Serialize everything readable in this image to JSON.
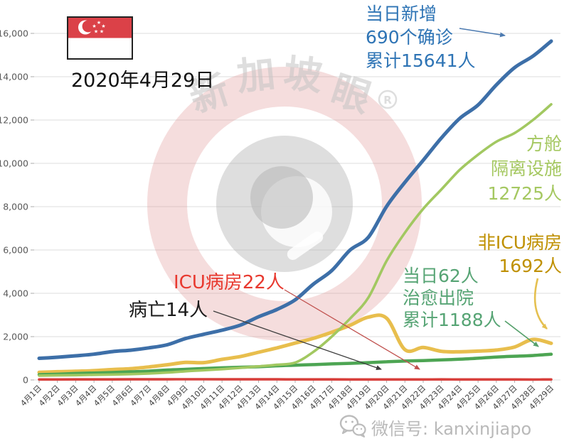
{
  "header": {
    "date": "2020年4月29日",
    "flag": "singapore-flag"
  },
  "watermark": {
    "chars": [
      "新",
      "加",
      "坡",
      "眼"
    ],
    "registered": "R"
  },
  "footer": {
    "wechat_label": "微信号: kanxinjiapo"
  },
  "annotations": {
    "confirmed": {
      "lines": [
        "当日新增",
        "690个确诊",
        "累计15641人"
      ],
      "color": "#2E74B5"
    },
    "facilities": {
      "lines": [
        "方舱",
        "隔离设施",
        "12725人"
      ],
      "color": "#A5C861"
    },
    "non_icu": {
      "lines": [
        "非ICU病房",
        "1692人"
      ],
      "color": "#BF9000"
    },
    "icu": {
      "text": "ICU病房22人",
      "color": "#E8392F"
    },
    "deaths": {
      "text": "病亡14人",
      "color": "#1A1A1A"
    },
    "discharged": {
      "lines": [
        "当日62人",
        "治愈出院",
        "累计1188人"
      ],
      "color": "#56A474"
    }
  },
  "chart_data": {
    "type": "line",
    "title": "",
    "xlabel": "",
    "ylabel": "",
    "ylim": [
      0,
      16000
    ],
    "ytick_step": 2000,
    "ytick_labels": [
      "0",
      "2,000",
      "4,000",
      "6,000",
      "8,000",
      "10,000",
      "12,000",
      "14,000",
      "16,000"
    ],
    "grid": true,
    "legend_position": "annotations-on-chart",
    "x": [
      "4月1日",
      "4月2日",
      "4月3日",
      "4月4日",
      "4月5日",
      "4月6日",
      "4月7日",
      "4月8日",
      "4月9日",
      "4月10日",
      "4月11日",
      "4月12日",
      "4月13日",
      "4月14日",
      "4月15日",
      "4月16日",
      "4月17日",
      "4月18日",
      "4月19日",
      "4月20日",
      "4月21日",
      "4月22日",
      "4月23日",
      "4月24日",
      "4月25日",
      "4月26日",
      "4月27日",
      "4月28日",
      "4月29日"
    ],
    "series": [
      {
        "id": "deaths",
        "name": "病亡(累计)",
        "color": "#4a4a4a",
        "width": 1.3,
        "values": [
          3,
          4,
          4,
          5,
          6,
          6,
          6,
          6,
          6,
          7,
          8,
          8,
          9,
          10,
          10,
          10,
          10,
          11,
          11,
          11,
          12,
          12,
          12,
          12,
          12,
          13,
          14,
          14,
          14
        ]
      },
      {
        "id": "icu",
        "name": "ICU病房",
        "color": "#D8403C",
        "width": 3.6,
        "values": [
          24,
          24,
          25,
          26,
          27,
          28,
          29,
          31,
          32,
          32,
          31,
          30,
          29,
          28,
          27,
          26,
          25,
          24,
          23,
          22,
          23,
          24,
          25,
          24,
          23,
          23,
          22,
          21,
          22
        ]
      },
      {
        "id": "non_icu",
        "name": "非ICU病房",
        "color": "#E8BE4D",
        "width": 5,
        "values": [
          350,
          380,
          400,
          430,
          480,
          520,
          600,
          700,
          810,
          800,
          950,
          1080,
          1280,
          1480,
          1700,
          1920,
          2200,
          2520,
          2900,
          2850,
          1400,
          1500,
          1320,
          1300,
          1330,
          1380,
          1520,
          1870,
          1692
        ]
      },
      {
        "id": "discharged",
        "name": "治愈出院(累计)",
        "color": "#4DA553",
        "width": 4.5,
        "values": [
          245,
          266,
          297,
          320,
          344,
          377,
          406,
          460,
          492,
          528,
          560,
          586,
          611,
          652,
          683,
          708,
          740,
          768,
          801,
          839,
          873,
          896,
          924,
          956,
          1002,
          1060,
          1095,
          1128,
          1188
        ]
      },
      {
        "id": "facilities",
        "name": "方舱隔离设施",
        "color": "#A2C861",
        "width": 3.6,
        "values": [
          200,
          210,
          220,
          235,
          250,
          270,
          300,
          340,
          400,
          450,
          500,
          560,
          630,
          700,
          800,
          1300,
          2000,
          2830,
          3800,
          5500,
          6800,
          7900,
          8800,
          9700,
          10400,
          11000,
          11400,
          12000,
          12725
        ]
      },
      {
        "id": "confirmed",
        "name": "累计确诊",
        "color": "#3D6FA8",
        "width": 5,
        "values": [
          1000,
          1049,
          1114,
          1189,
          1309,
          1375,
          1481,
          1623,
          1910,
          2108,
          2299,
          2532,
          2918,
          3252,
          3699,
          4427,
          5050,
          5992,
          6588,
          8014,
          9125,
          10141,
          11178,
          12075,
          12693,
          13624,
          14423,
          14951,
          15641
        ]
      }
    ]
  }
}
